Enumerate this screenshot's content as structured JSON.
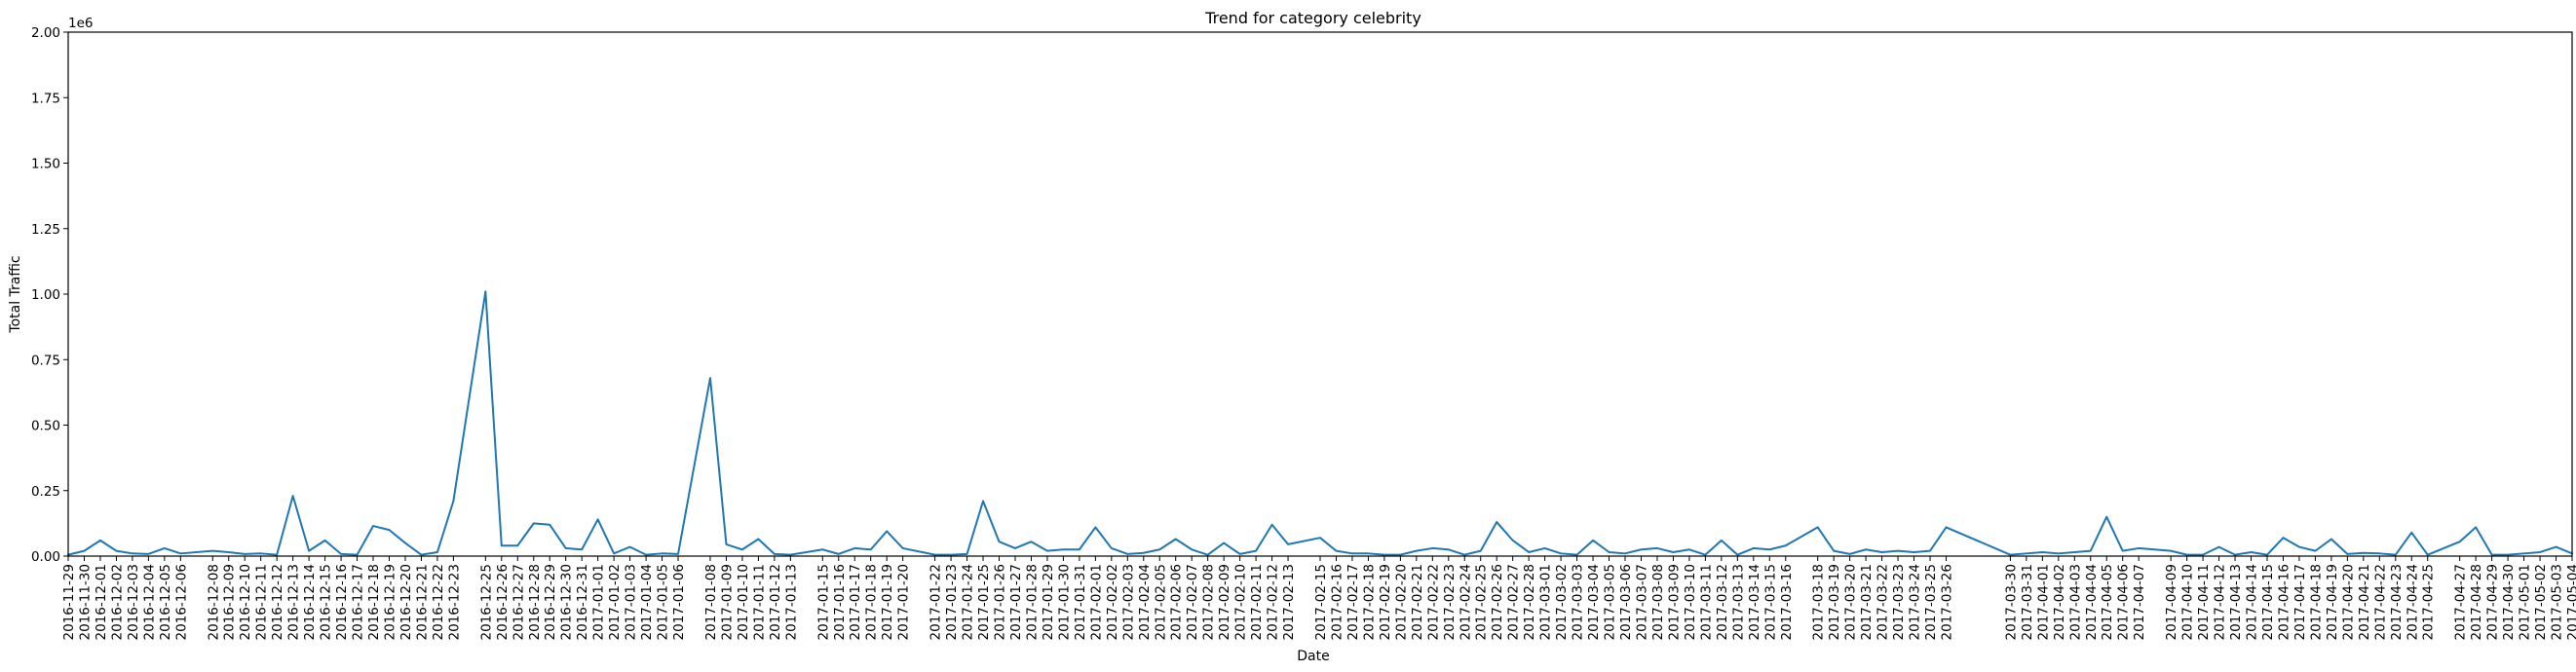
{
  "chart_data": {
    "type": "line",
    "title": "Trend for category celebrity",
    "xlabel": "Date",
    "ylabel": "Total Traffic",
    "y_offset_label": "1e6",
    "ylim": [
      0,
      2000000
    ],
    "grid": false,
    "color": "#1f77b4",
    "yticks": [
      {
        "value": 0,
        "label": "0.00"
      },
      {
        "value": 250000,
        "label": "0.25"
      },
      {
        "value": 500000,
        "label": "0.50"
      },
      {
        "value": 750000,
        "label": "0.75"
      },
      {
        "value": 1000000,
        "label": "1.00"
      },
      {
        "value": 1250000,
        "label": "1.25"
      },
      {
        "value": 1500000,
        "label": "1.50"
      },
      {
        "value": 1750000,
        "label": "1.75"
      },
      {
        "value": 2000000,
        "label": "2.00"
      }
    ],
    "points": [
      [
        "2016-11-29",
        5000
      ],
      [
        "2016-11-30",
        20000
      ],
      [
        "2016-12-01",
        60000
      ],
      [
        "2016-12-02",
        20000
      ],
      [
        "2016-12-03",
        10000
      ],
      [
        "2016-12-04",
        8000
      ],
      [
        "2016-12-05",
        30000
      ],
      [
        "2016-12-06",
        10000
      ],
      [
        "2016-12-08",
        20000
      ],
      [
        "2016-12-09",
        15000
      ],
      [
        "2016-12-10",
        8000
      ],
      [
        "2016-12-11",
        10000
      ],
      [
        "2016-12-12",
        5000
      ],
      [
        "2016-12-13",
        230000
      ],
      [
        "2016-12-14",
        20000
      ],
      [
        "2016-12-15",
        60000
      ],
      [
        "2016-12-16",
        8000
      ],
      [
        "2016-12-17",
        5000
      ],
      [
        "2016-12-18",
        115000
      ],
      [
        "2016-12-19",
        100000
      ],
      [
        "2016-12-20",
        50000
      ],
      [
        "2016-12-21",
        5000
      ],
      [
        "2016-12-22",
        15000
      ],
      [
        "2016-12-23",
        210000
      ],
      [
        "2016-12-25",
        1010000
      ],
      [
        "2016-12-26",
        40000
      ],
      [
        "2016-12-27",
        40000
      ],
      [
        "2016-12-28",
        125000
      ],
      [
        "2016-12-29",
        120000
      ],
      [
        "2016-12-30",
        30000
      ],
      [
        "2016-12-31",
        25000
      ],
      [
        "2017-01-01",
        140000
      ],
      [
        "2017-01-02",
        10000
      ],
      [
        "2017-01-03",
        35000
      ],
      [
        "2017-01-04",
        5000
      ],
      [
        "2017-01-05",
        10000
      ],
      [
        "2017-01-06",
        8000
      ],
      [
        "2017-01-08",
        680000
      ],
      [
        "2017-01-09",
        45000
      ],
      [
        "2017-01-10",
        25000
      ],
      [
        "2017-01-11",
        65000
      ],
      [
        "2017-01-12",
        8000
      ],
      [
        "2017-01-13",
        5000
      ],
      [
        "2017-01-15",
        25000
      ],
      [
        "2017-01-16",
        8000
      ],
      [
        "2017-01-17",
        30000
      ],
      [
        "2017-01-18",
        25000
      ],
      [
        "2017-01-19",
        95000
      ],
      [
        "2017-01-20",
        30000
      ],
      [
        "2017-01-22",
        5000
      ],
      [
        "2017-01-23",
        5000
      ],
      [
        "2017-01-24",
        8000
      ],
      [
        "2017-01-25",
        210000
      ],
      [
        "2017-01-26",
        55000
      ],
      [
        "2017-01-27",
        30000
      ],
      [
        "2017-01-28",
        55000
      ],
      [
        "2017-01-29",
        20000
      ],
      [
        "2017-01-30",
        25000
      ],
      [
        "2017-01-31",
        25000
      ],
      [
        "2017-02-01",
        110000
      ],
      [
        "2017-02-02",
        30000
      ],
      [
        "2017-02-03",
        8000
      ],
      [
        "2017-02-04",
        12000
      ],
      [
        "2017-02-05",
        25000
      ],
      [
        "2017-02-06",
        65000
      ],
      [
        "2017-02-07",
        25000
      ],
      [
        "2017-02-08",
        5000
      ],
      [
        "2017-02-09",
        50000
      ],
      [
        "2017-02-10",
        8000
      ],
      [
        "2017-02-11",
        20000
      ],
      [
        "2017-02-12",
        120000
      ],
      [
        "2017-02-13",
        45000
      ],
      [
        "2017-02-15",
        70000
      ],
      [
        "2017-02-16",
        20000
      ],
      [
        "2017-02-17",
        10000
      ],
      [
        "2017-02-18",
        10000
      ],
      [
        "2017-02-19",
        5000
      ],
      [
        "2017-02-20",
        5000
      ],
      [
        "2017-02-21",
        20000
      ],
      [
        "2017-02-22",
        30000
      ],
      [
        "2017-02-23",
        25000
      ],
      [
        "2017-02-24",
        5000
      ],
      [
        "2017-02-25",
        20000
      ],
      [
        "2017-02-26",
        130000
      ],
      [
        "2017-02-27",
        60000
      ],
      [
        "2017-02-28",
        15000
      ],
      [
        "2017-03-01",
        30000
      ],
      [
        "2017-03-02",
        10000
      ],
      [
        "2017-03-03",
        5000
      ],
      [
        "2017-03-04",
        60000
      ],
      [
        "2017-03-05",
        15000
      ],
      [
        "2017-03-06",
        10000
      ],
      [
        "2017-03-07",
        25000
      ],
      [
        "2017-03-08",
        30000
      ],
      [
        "2017-03-09",
        15000
      ],
      [
        "2017-03-10",
        25000
      ],
      [
        "2017-03-11",
        5000
      ],
      [
        "2017-03-12",
        60000
      ],
      [
        "2017-03-13",
        5000
      ],
      [
        "2017-03-14",
        30000
      ],
      [
        "2017-03-15",
        25000
      ],
      [
        "2017-03-16",
        40000
      ],
      [
        "2017-03-18",
        110000
      ],
      [
        "2017-03-19",
        20000
      ],
      [
        "2017-03-20",
        8000
      ],
      [
        "2017-03-21",
        25000
      ],
      [
        "2017-03-22",
        15000
      ],
      [
        "2017-03-23",
        20000
      ],
      [
        "2017-03-24",
        15000
      ],
      [
        "2017-03-25",
        20000
      ],
      [
        "2017-03-26",
        110000
      ],
      [
        "2017-03-30",
        5000
      ],
      [
        "2017-03-31",
        10000
      ],
      [
        "2017-04-01",
        15000
      ],
      [
        "2017-04-02",
        10000
      ],
      [
        "2017-04-03",
        15000
      ],
      [
        "2017-04-04",
        20000
      ],
      [
        "2017-04-05",
        150000
      ],
      [
        "2017-04-06",
        20000
      ],
      [
        "2017-04-07",
        30000
      ],
      [
        "2017-04-09",
        20000
      ],
      [
        "2017-04-10",
        5000
      ],
      [
        "2017-04-11",
        5000
      ],
      [
        "2017-04-12",
        35000
      ],
      [
        "2017-04-13",
        5000
      ],
      [
        "2017-04-14",
        15000
      ],
      [
        "2017-04-15",
        5000
      ],
      [
        "2017-04-16",
        70000
      ],
      [
        "2017-04-17",
        35000
      ],
      [
        "2017-04-18",
        20000
      ],
      [
        "2017-04-19",
        65000
      ],
      [
        "2017-04-20",
        8000
      ],
      [
        "2017-04-21",
        12000
      ],
      [
        "2017-04-22",
        10000
      ],
      [
        "2017-04-23",
        5000
      ],
      [
        "2017-04-24",
        90000
      ],
      [
        "2017-04-25",
        5000
      ],
      [
        "2017-04-27",
        55000
      ],
      [
        "2017-04-28",
        110000
      ],
      [
        "2017-04-29",
        5000
      ],
      [
        "2017-04-30",
        5000
      ],
      [
        "2017-05-01",
        10000
      ],
      [
        "2017-05-02",
        15000
      ],
      [
        "2017-05-03",
        35000
      ],
      [
        "2017-05-04",
        10000
      ]
    ]
  }
}
